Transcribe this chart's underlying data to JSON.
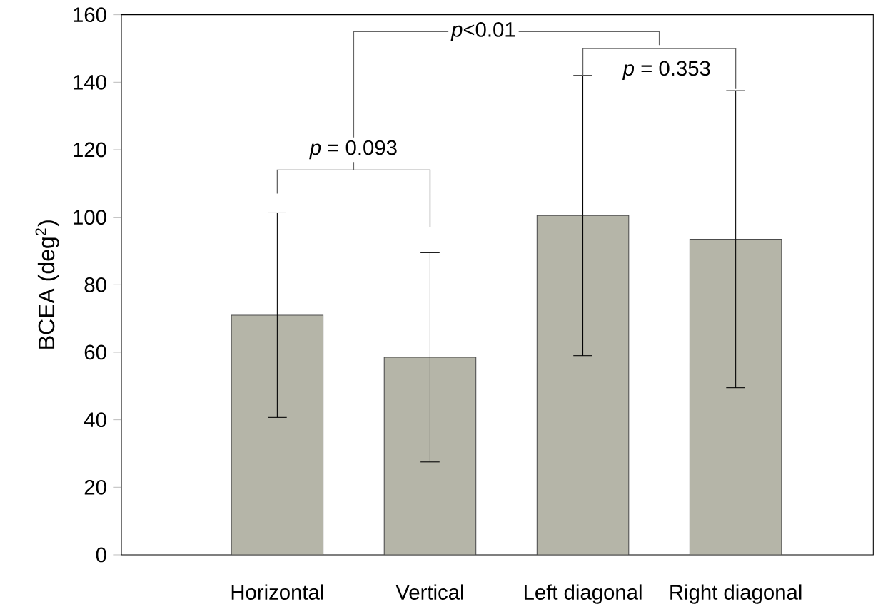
{
  "chart_data": {
    "type": "bar",
    "ylabel": "BCEA (deg$^{2}$)",
    "categories": [
      "Horizontal",
      "Vertical",
      "Left diagonal",
      "Right diagonal"
    ],
    "values": [
      71,
      58.5,
      100.5,
      93.5
    ],
    "errors": [
      30.3,
      31,
      41.5,
      44
    ],
    "color": "#b5b5a8",
    "ylim": [
      0,
      160
    ],
    "yticks": [
      0,
      20,
      40,
      60,
      80,
      100,
      120,
      140,
      160
    ],
    "annotations": [
      "*p* = 0.093",
      "*p*<0.01",
      "*p* = 0.353"
    ]
  }
}
